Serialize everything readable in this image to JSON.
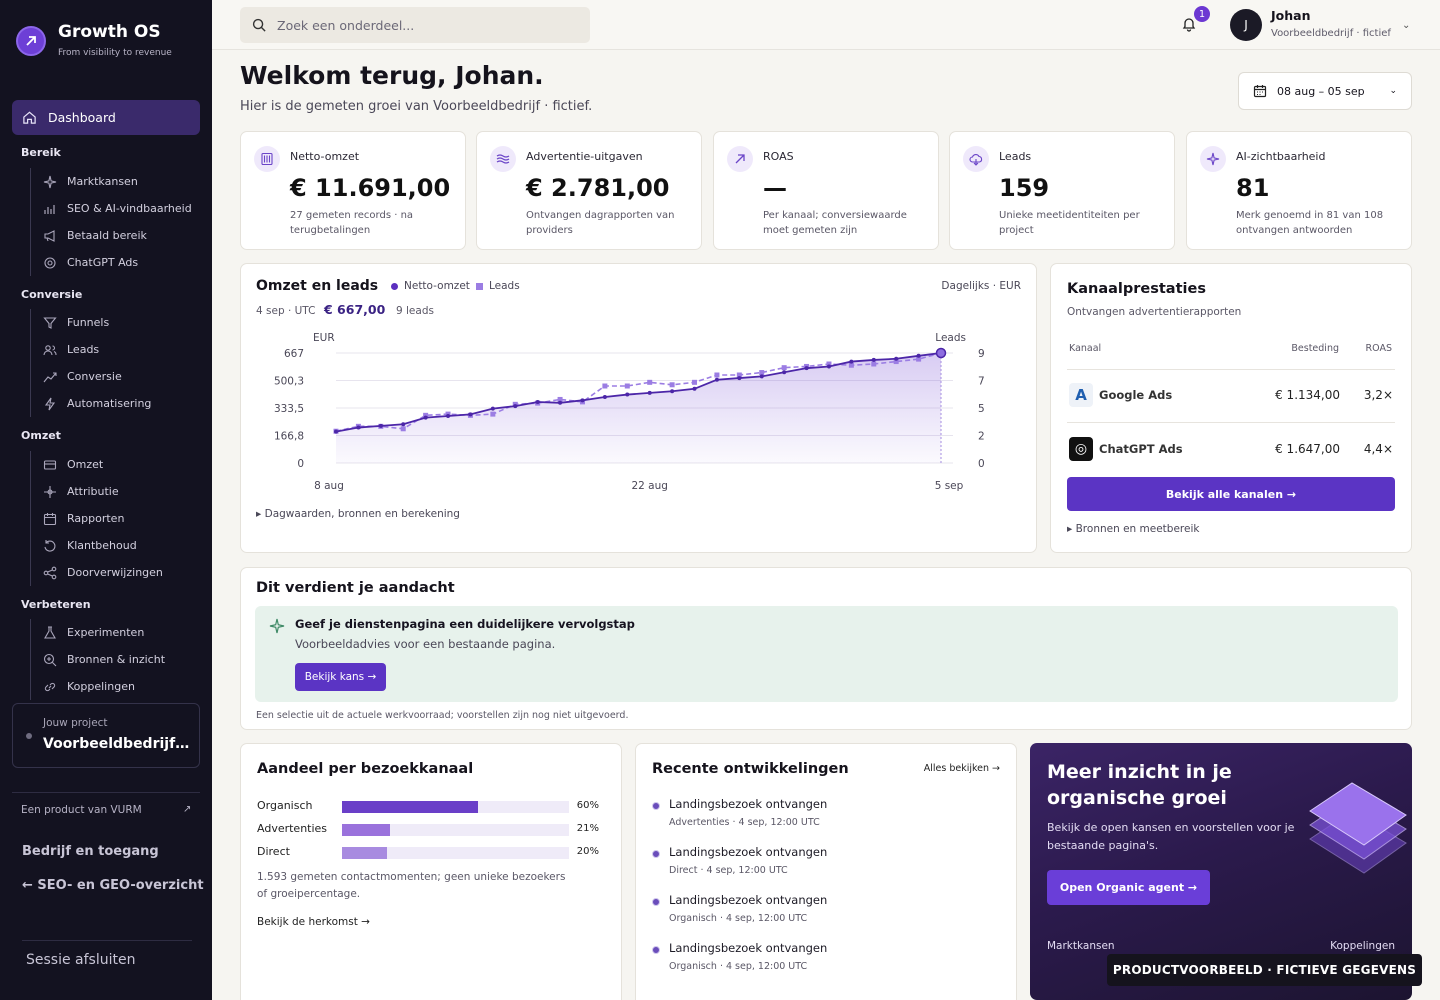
{
  "brand": {
    "name": "Growth OS",
    "tagline": "From visibility to revenue"
  },
  "sidebar": {
    "dashboard": "Dashboard",
    "sections": [
      {
        "title": "Bereik",
        "items": [
          {
            "label": "Marktkansen",
            "icon": "sparkle-icon"
          },
          {
            "label": "SEO & AI-vindbaarheid",
            "icon": "bar-chart-icon"
          },
          {
            "label": "Betaald bereik",
            "icon": "megaphone-icon"
          },
          {
            "label": "ChatGPT Ads",
            "icon": "chatgpt-icon"
          }
        ]
      },
      {
        "title": "Conversie",
        "items": [
          {
            "label": "Funnels",
            "icon": "funnel-icon"
          },
          {
            "label": "Leads",
            "icon": "users-icon"
          },
          {
            "label": "Conversie",
            "icon": "trend-up-icon"
          },
          {
            "label": "Automatisering",
            "icon": "lightning-icon"
          }
        ]
      },
      {
        "title": "Omzet",
        "items": [
          {
            "label": "Omzet",
            "icon": "wallet-icon"
          },
          {
            "label": "Attributie",
            "icon": "attribution-icon"
          },
          {
            "label": "Rapporten",
            "icon": "calendar-icon"
          },
          {
            "label": "Klantbehoud",
            "icon": "refresh-icon"
          },
          {
            "label": "Doorverwijzingen",
            "icon": "share-icon"
          }
        ]
      },
      {
        "title": "Verbeteren",
        "items": [
          {
            "label": "Experimenten",
            "icon": "flask-icon"
          },
          {
            "label": "Bronnen & inzicht",
            "icon": "search-plus-icon"
          },
          {
            "label": "Koppelingen",
            "icon": "link-icon"
          }
        ]
      }
    ],
    "project_label": "Jouw project",
    "project_name": "Voorbeeldbedrijf · fictief",
    "product_of": "Een product van VURM",
    "company_access": "Bedrijf en toegang",
    "seo_overview": "← SEO- en GEO-overzicht",
    "logout": "Sessie afsluiten"
  },
  "topbar": {
    "search_placeholder": "Zoek een onderdeel...",
    "notification_count": "1",
    "avatar_initial": "J",
    "user_name": "Johan",
    "user_company": "Voorbeeldbedrijf · fictief"
  },
  "header": {
    "title": "Welkom terug, Johan.",
    "subtitle": "Hier is de gemeten groei van Voorbeeldbedrijf · fictief.",
    "date_range": "08 aug – 05 sep"
  },
  "kpis": [
    {
      "label": "Netto-omzet",
      "value": "€ 11.691,00",
      "note": "27 gemeten records · na terugbetalingen",
      "icon": "receipt-icon"
    },
    {
      "label": "Advertentie-uitgaven",
      "value": "€ 2.781,00",
      "note": "Ontvangen dagrapporten van providers",
      "icon": "waves-icon"
    },
    {
      "label": "ROAS",
      "value": "—",
      "note": "Per kanaal; conversiewaarde moet gemeten zijn",
      "icon": "arrow-up-right-icon"
    },
    {
      "label": "Leads",
      "value": "159",
      "note": "Unieke meetidentiteiten per project",
      "icon": "cloud-icon"
    },
    {
      "label": "AI-zichtbaarheid",
      "value": "81",
      "note": "Merk genoemd in 81 van 108 ontvangen antwoorden",
      "icon": "sparkle-icon"
    }
  ],
  "chart_panel": {
    "title": "Omzet en leads",
    "legend_revenue": "Netto-omzet",
    "legend_leads": "Leads",
    "meta": "Dagelijks · EUR",
    "selected_date": "4 sep · UTC",
    "selected_value": "€ 667,00",
    "selected_leads": "9 leads",
    "details": "▸ Dagwaarden, bronnen en berekening"
  },
  "chart_data": {
    "type": "line",
    "title": "Omzet en leads",
    "ylabel": "EUR",
    "y2label": "Leads",
    "ylim": [
      0,
      667
    ],
    "y2lim": [
      0,
      9
    ],
    "y_ticks": [
      "667",
      "500,3",
      "333,5",
      "166,8",
      "0"
    ],
    "y2_ticks": [
      "9",
      "7",
      "5",
      "2",
      "0"
    ],
    "x_ticks": [
      "8 aug",
      "22 aug",
      "5 sep"
    ],
    "x": [
      "8 aug",
      "9 aug",
      "10 aug",
      "11 aug",
      "12 aug",
      "13 aug",
      "14 aug",
      "15 aug",
      "16 aug",
      "17 aug",
      "18 aug",
      "19 aug",
      "20 aug",
      "21 aug",
      "22 aug",
      "23 aug",
      "24 aug",
      "25 aug",
      "26 aug",
      "27 aug",
      "28 aug",
      "29 aug",
      "30 aug",
      "31 aug",
      "1 sep",
      "2 sep",
      "3 sep",
      "4 sep"
    ],
    "series": [
      {
        "name": "Netto-omzet",
        "values": [
          190,
          215,
          225,
          235,
          275,
          285,
          295,
          330,
          345,
          370,
          365,
          380,
          400,
          415,
          425,
          435,
          450,
          505,
          515,
          525,
          550,
          575,
          585,
          615,
          625,
          632,
          650,
          667
        ]
      },
      {
        "name": "Leads",
        "values": [
          2.6,
          3.0,
          3.0,
          2.8,
          3.9,
          4.0,
          3.9,
          4.0,
          4.8,
          4.9,
          5.2,
          5.0,
          6.3,
          6.3,
          6.6,
          6.4,
          6.6,
          7.2,
          7.2,
          7.4,
          7.8,
          7.9,
          8.1,
          8.0,
          8.1,
          8.3,
          8.5,
          9.0
        ]
      }
    ]
  },
  "channels": {
    "title": "Kanaalprestaties",
    "subtitle": "Ontvangen advertentierapporten",
    "col_channel": "Kanaal",
    "col_spend": "Besteding",
    "col_roas": "ROAS",
    "rows": [
      {
        "name": "Google Ads",
        "spend": "€ 1.134,00",
        "roas": "3,2×",
        "logo": "A"
      },
      {
        "name": "ChatGPT Ads",
        "spend": "€ 1.647,00",
        "roas": "4,4×",
        "logo": "◎"
      }
    ],
    "button": "Bekijk alle kanalen →",
    "details": "▸ Bronnen en meetbereik"
  },
  "attention": {
    "title": "Dit verdient je aandacht",
    "item_title": "Geef je dienstenpagina een duidelijkere vervolgstap",
    "item_sub": "Voorbeeldadvies voor een bestaande pagina.",
    "button": "Bekijk kans →",
    "footnote": "Een selectie uit de actuele werkvoorraad; voorstellen zijn nog niet uitgevoerd."
  },
  "share": {
    "title": "Aandeel per bezoekkanaal",
    "rows": [
      {
        "label": "Organisch",
        "pct": "60%",
        "value": 60,
        "color": "#6a3fc8"
      },
      {
        "label": "Advertenties",
        "pct": "21%",
        "value": 21,
        "color": "#9a72dc"
      },
      {
        "label": "Direct",
        "pct": "20%",
        "value": 20,
        "color": "#a88be0"
      }
    ],
    "note": "1.593 gemeten contactmomenten; geen unieke bezoekers of groeipercentage.",
    "link": "Bekijk de herkomst →"
  },
  "recent": {
    "title": "Recente ontwikkelingen",
    "all": "Alles bekijken →",
    "items": [
      {
        "title": "Landingsbezoek ontvangen",
        "meta": "Advertenties · 4 sep, 12:00 UTC"
      },
      {
        "title": "Landingsbezoek ontvangen",
        "meta": "Direct · 4 sep, 12:00 UTC"
      },
      {
        "title": "Landingsbezoek ontvangen",
        "meta": "Organisch · 4 sep, 12:00 UTC"
      },
      {
        "title": "Landingsbezoek ontvangen",
        "meta": "Organisch · 4 sep, 12:00 UTC"
      }
    ]
  },
  "promo": {
    "title": "Meer inzicht in je organische groei",
    "subtitle": "Bekijk de open kansen en voorstellen voor je bestaande pagina's.",
    "button": "Open Organic agent →",
    "left_link": "Marktkansen",
    "right_link": "Koppelingen"
  },
  "ribbon": "PRODUCTVOORBEELD · FICTIEVE GEGEVENS",
  "colors": {
    "accent": "#5b34c4",
    "sidebar": "#131220",
    "page": "#f6f5f1"
  }
}
